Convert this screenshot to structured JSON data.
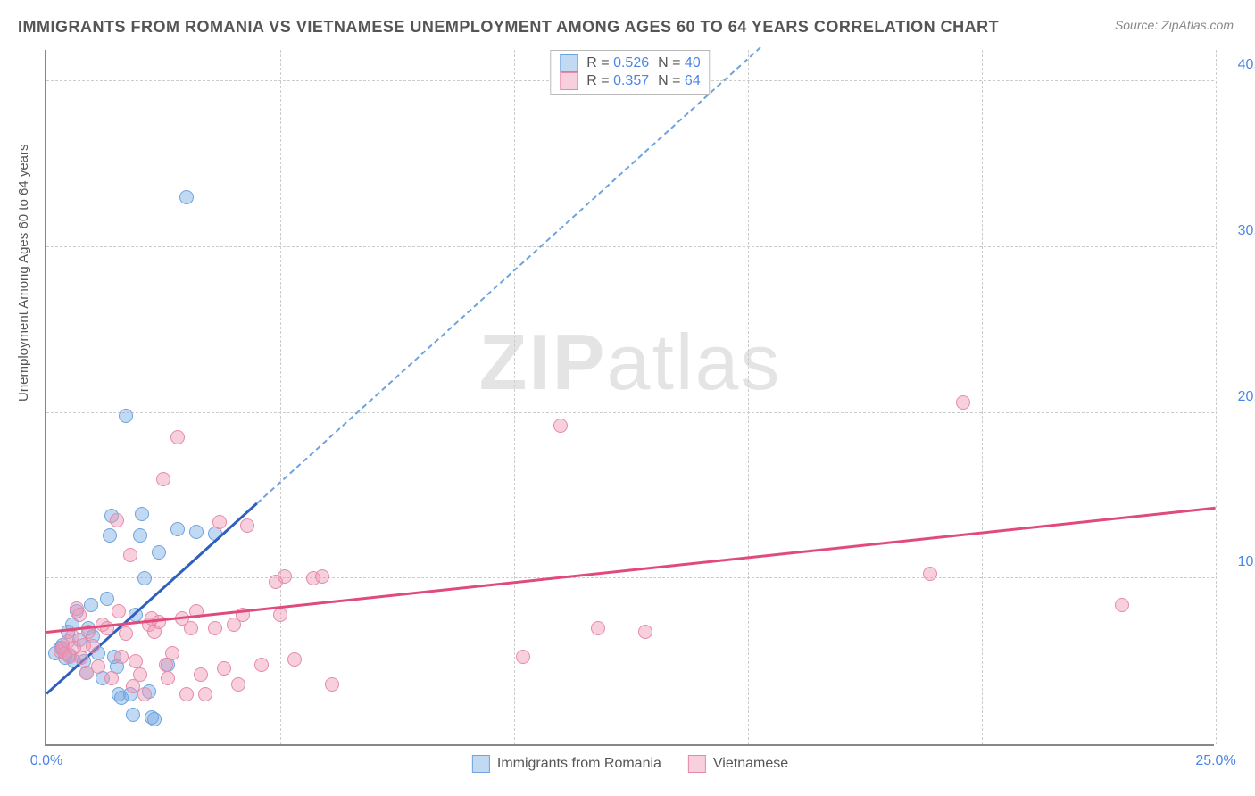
{
  "title": "IMMIGRANTS FROM ROMANIA VS VIETNAMESE UNEMPLOYMENT AMONG AGES 60 TO 64 YEARS CORRELATION CHART",
  "source": "Source: ZipAtlas.com",
  "yaxis_label": "Unemployment Among Ages 60 to 64 years",
  "watermark_a": "ZIP",
  "watermark_b": "atlas",
  "chart": {
    "type": "scatter",
    "xlim": [
      0,
      25
    ],
    "ylim": [
      0,
      42
    ],
    "xticks": [
      {
        "v": 0,
        "l": "0.0%"
      },
      {
        "v": 25,
        "l": "25.0%"
      }
    ],
    "xgrid": [
      5,
      10,
      15,
      20,
      25
    ],
    "yticks": [
      {
        "v": 10,
        "l": "10.0%"
      },
      {
        "v": 20,
        "l": "20.0%"
      },
      {
        "v": 30,
        "l": "30.0%"
      },
      {
        "v": 40,
        "l": "40.0%"
      }
    ],
    "grid_color": "#cccccc",
    "series": [
      {
        "name": "Immigrants from Romania",
        "fill": "rgba(120,170,230,0.45)",
        "stroke": "#6fa3dd",
        "marker_r": 8,
        "R": "0.526",
        "N": "40",
        "trend": {
          "x1": 0,
          "y1": 3.0,
          "x2": 4.5,
          "y2": 14.5,
          "color": "#2f5fbf",
          "dash_extend_to_y": 42
        },
        "points": [
          [
            0.2,
            5.5
          ],
          [
            0.3,
            5.8
          ],
          [
            0.35,
            6.0
          ],
          [
            0.4,
            5.2
          ],
          [
            0.45,
            6.8
          ],
          [
            0.5,
            5.4
          ],
          [
            0.55,
            7.2
          ],
          [
            0.6,
            5.0
          ],
          [
            0.65,
            8.0
          ],
          [
            0.7,
            6.3
          ],
          [
            0.8,
            5.0
          ],
          [
            0.85,
            4.3
          ],
          [
            0.9,
            7.0
          ],
          [
            0.95,
            8.4
          ],
          [
            1.0,
            6.5
          ],
          [
            1.1,
            5.5
          ],
          [
            1.2,
            4.0
          ],
          [
            1.3,
            8.8
          ],
          [
            1.35,
            12.6
          ],
          [
            1.4,
            13.8
          ],
          [
            1.45,
            5.3
          ],
          [
            1.5,
            4.7
          ],
          [
            1.55,
            3.0
          ],
          [
            1.6,
            2.8
          ],
          [
            1.7,
            19.8
          ],
          [
            1.8,
            3.0
          ],
          [
            1.85,
            1.8
          ],
          [
            1.9,
            7.8
          ],
          [
            2.0,
            12.6
          ],
          [
            2.05,
            13.9
          ],
          [
            2.1,
            10.0
          ],
          [
            2.2,
            3.2
          ],
          [
            2.25,
            1.6
          ],
          [
            2.3,
            1.5
          ],
          [
            2.4,
            11.6
          ],
          [
            2.6,
            4.8
          ],
          [
            2.8,
            13.0
          ],
          [
            3.0,
            33.0
          ],
          [
            3.2,
            12.8
          ],
          [
            3.6,
            12.7
          ]
        ]
      },
      {
        "name": "Vietnamese",
        "fill": "rgba(240,150,180,0.45)",
        "stroke": "#e68aa8",
        "marker_r": 8,
        "R": "0.357",
        "N": "64",
        "trend": {
          "x1": 0,
          "y1": 6.7,
          "x2": 25,
          "y2": 14.2,
          "color": "#e14b7b"
        },
        "points": [
          [
            0.3,
            5.6
          ],
          [
            0.35,
            5.8
          ],
          [
            0.4,
            5.5
          ],
          [
            0.45,
            6.2
          ],
          [
            0.5,
            5.3
          ],
          [
            0.55,
            6.5
          ],
          [
            0.6,
            5.8
          ],
          [
            0.65,
            8.2
          ],
          [
            0.7,
            7.8
          ],
          [
            0.75,
            5.2
          ],
          [
            0.8,
            6.0
          ],
          [
            0.85,
            4.3
          ],
          [
            0.9,
            6.8
          ],
          [
            1.0,
            5.9
          ],
          [
            1.1,
            4.7
          ],
          [
            1.2,
            7.2
          ],
          [
            1.3,
            7.0
          ],
          [
            1.4,
            4.0
          ],
          [
            1.5,
            13.5
          ],
          [
            1.55,
            8.0
          ],
          [
            1.6,
            5.3
          ],
          [
            1.7,
            6.7
          ],
          [
            1.8,
            11.4
          ],
          [
            1.85,
            3.5
          ],
          [
            1.9,
            5.0
          ],
          [
            2.0,
            4.2
          ],
          [
            2.1,
            3.0
          ],
          [
            2.2,
            7.2
          ],
          [
            2.25,
            7.6
          ],
          [
            2.3,
            6.8
          ],
          [
            2.4,
            7.4
          ],
          [
            2.5,
            16.0
          ],
          [
            2.55,
            4.8
          ],
          [
            2.6,
            4.0
          ],
          [
            2.7,
            5.5
          ],
          [
            2.8,
            18.5
          ],
          [
            2.9,
            7.6
          ],
          [
            3.0,
            3.0
          ],
          [
            3.1,
            7.0
          ],
          [
            3.2,
            8.0
          ],
          [
            3.3,
            4.2
          ],
          [
            3.4,
            3.0
          ],
          [
            3.6,
            7.0
          ],
          [
            3.7,
            13.4
          ],
          [
            3.8,
            4.6
          ],
          [
            4.0,
            7.2
          ],
          [
            4.1,
            3.6
          ],
          [
            4.2,
            7.8
          ],
          [
            4.3,
            13.2
          ],
          [
            4.6,
            4.8
          ],
          [
            4.9,
            9.8
          ],
          [
            5.0,
            7.8
          ],
          [
            5.1,
            10.1
          ],
          [
            5.3,
            5.1
          ],
          [
            5.7,
            10.0
          ],
          [
            5.9,
            10.1
          ],
          [
            6.1,
            3.6
          ],
          [
            10.2,
            5.3
          ],
          [
            11.0,
            19.2
          ],
          [
            11.8,
            7.0
          ],
          [
            12.8,
            6.8
          ],
          [
            18.9,
            10.3
          ],
          [
            19.6,
            20.6
          ],
          [
            23.0,
            8.4
          ]
        ]
      }
    ]
  }
}
